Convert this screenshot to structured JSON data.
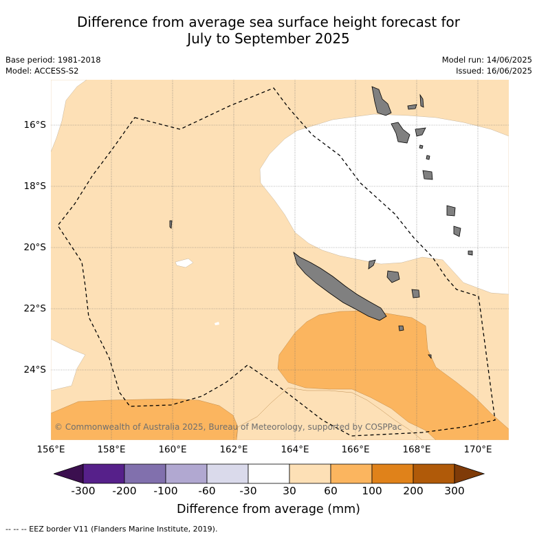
{
  "title_line1": "Difference from average sea surface height forecast for",
  "title_line2": "July to September 2025",
  "meta_left": {
    "base_period": "Base period: 1981-2018",
    "model": "Model: ACCESS-S2"
  },
  "meta_right": {
    "model_run": "Model run: 14/06/2025",
    "issued": "Issued: 16/06/2025"
  },
  "copyright": "© Commonwealth of Australia 2025, Bureau of Meteorology, supported by COSPPac",
  "x_ticks": [
    "156°E",
    "158°E",
    "160°E",
    "162°E",
    "164°E",
    "166°E",
    "168°E",
    "170°E"
  ],
  "y_ticks": [
    "16°S",
    "18°S",
    "20°S",
    "22°S",
    "24°S"
  ],
  "colorbar": {
    "label": "Difference from average (mm)",
    "ticks": [
      "-300",
      "-200",
      "-100",
      "-60",
      "-30",
      "30",
      "60",
      "100",
      "200",
      "300"
    ],
    "colors": [
      "#3b0f4f",
      "#56208a",
      "#8170ad",
      "#b1a8d1",
      "#dadaeb",
      "#ffffff",
      "#fde0b6",
      "#fbb55f",
      "#e0821a",
      "#b05a09",
      "#7f3b08"
    ]
  },
  "footer": "--  --  -- EEZ border V11 (Flanders Marine Institute, 2019)."
}
